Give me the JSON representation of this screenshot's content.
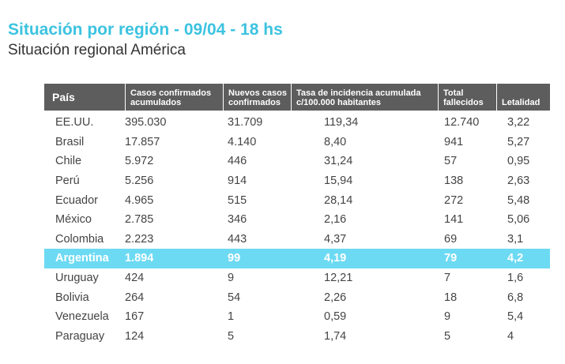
{
  "title": "Situación por región - 09/04 - 18 hs",
  "subtitle": "Situación regional América",
  "headers": {
    "country": "País",
    "cases_l1": "Casos confirmados",
    "cases_l2": "acumulados",
    "new_l1": "Nuevos casos",
    "new_l2": "confirmados",
    "rate_l1": "Tasa de incidencia acumulada",
    "rate_l2": "c/100.000 habitantes",
    "deaths_l1": "Total",
    "deaths_l2": "fallecidos",
    "lethality": "Letalidad"
  },
  "rows": [
    {
      "country": "EE.UU.",
      "cases": "395.030",
      "new": "31.709",
      "rate": "119,34",
      "deaths": "12.740",
      "lethality": "3,22"
    },
    {
      "country": "Brasil",
      "cases": "17.857",
      "new": "4.140",
      "rate": "8,40",
      "deaths": "941",
      "lethality": "5,27"
    },
    {
      "country": "Chile",
      "cases": "5.972",
      "new": "446",
      "rate": "31,24",
      "deaths": "57",
      "lethality": "0,95"
    },
    {
      "country": "Perú",
      "cases": "5.256",
      "new": "914",
      "rate": "15,94",
      "deaths": "138",
      "lethality": "2,63"
    },
    {
      "country": "Ecuador",
      "cases": "4.965",
      "new": "515",
      "rate": "28,14",
      "deaths": "272",
      "lethality": "5,48"
    },
    {
      "country": "México",
      "cases": "2.785",
      "new": "346",
      "rate": "2,16",
      "deaths": "141",
      "lethality": "5,06"
    },
    {
      "country": "Colombia",
      "cases": "2.223",
      "new": "443",
      "rate": "4,37",
      "deaths": "69",
      "lethality": "3,1"
    },
    {
      "country": "Argentina",
      "cases": "1.894",
      "new": "99",
      "rate": "4,19",
      "deaths": "79",
      "lethality": "4,2"
    },
    {
      "country": "Uruguay",
      "cases": "424",
      "new": "9",
      "rate": "12,21",
      "deaths": "7",
      "lethality": "1,6"
    },
    {
      "country": "Bolivia",
      "cases": "264",
      "new": "54",
      "rate": "2,26",
      "deaths": "18",
      "lethality": "6,8"
    },
    {
      "country": "Venezuela",
      "cases": "167",
      "new": "1",
      "rate": "0,59",
      "deaths": "9",
      "lethality": "5,4"
    },
    {
      "country": "Paraguay",
      "cases": "124",
      "new": "5",
      "rate": "1,74",
      "deaths": "5",
      "lethality": "4"
    }
  ],
  "highlight_color": "#6ddaf3",
  "header_color": "#5d5d5d",
  "title_color": "#3cc3e0"
}
